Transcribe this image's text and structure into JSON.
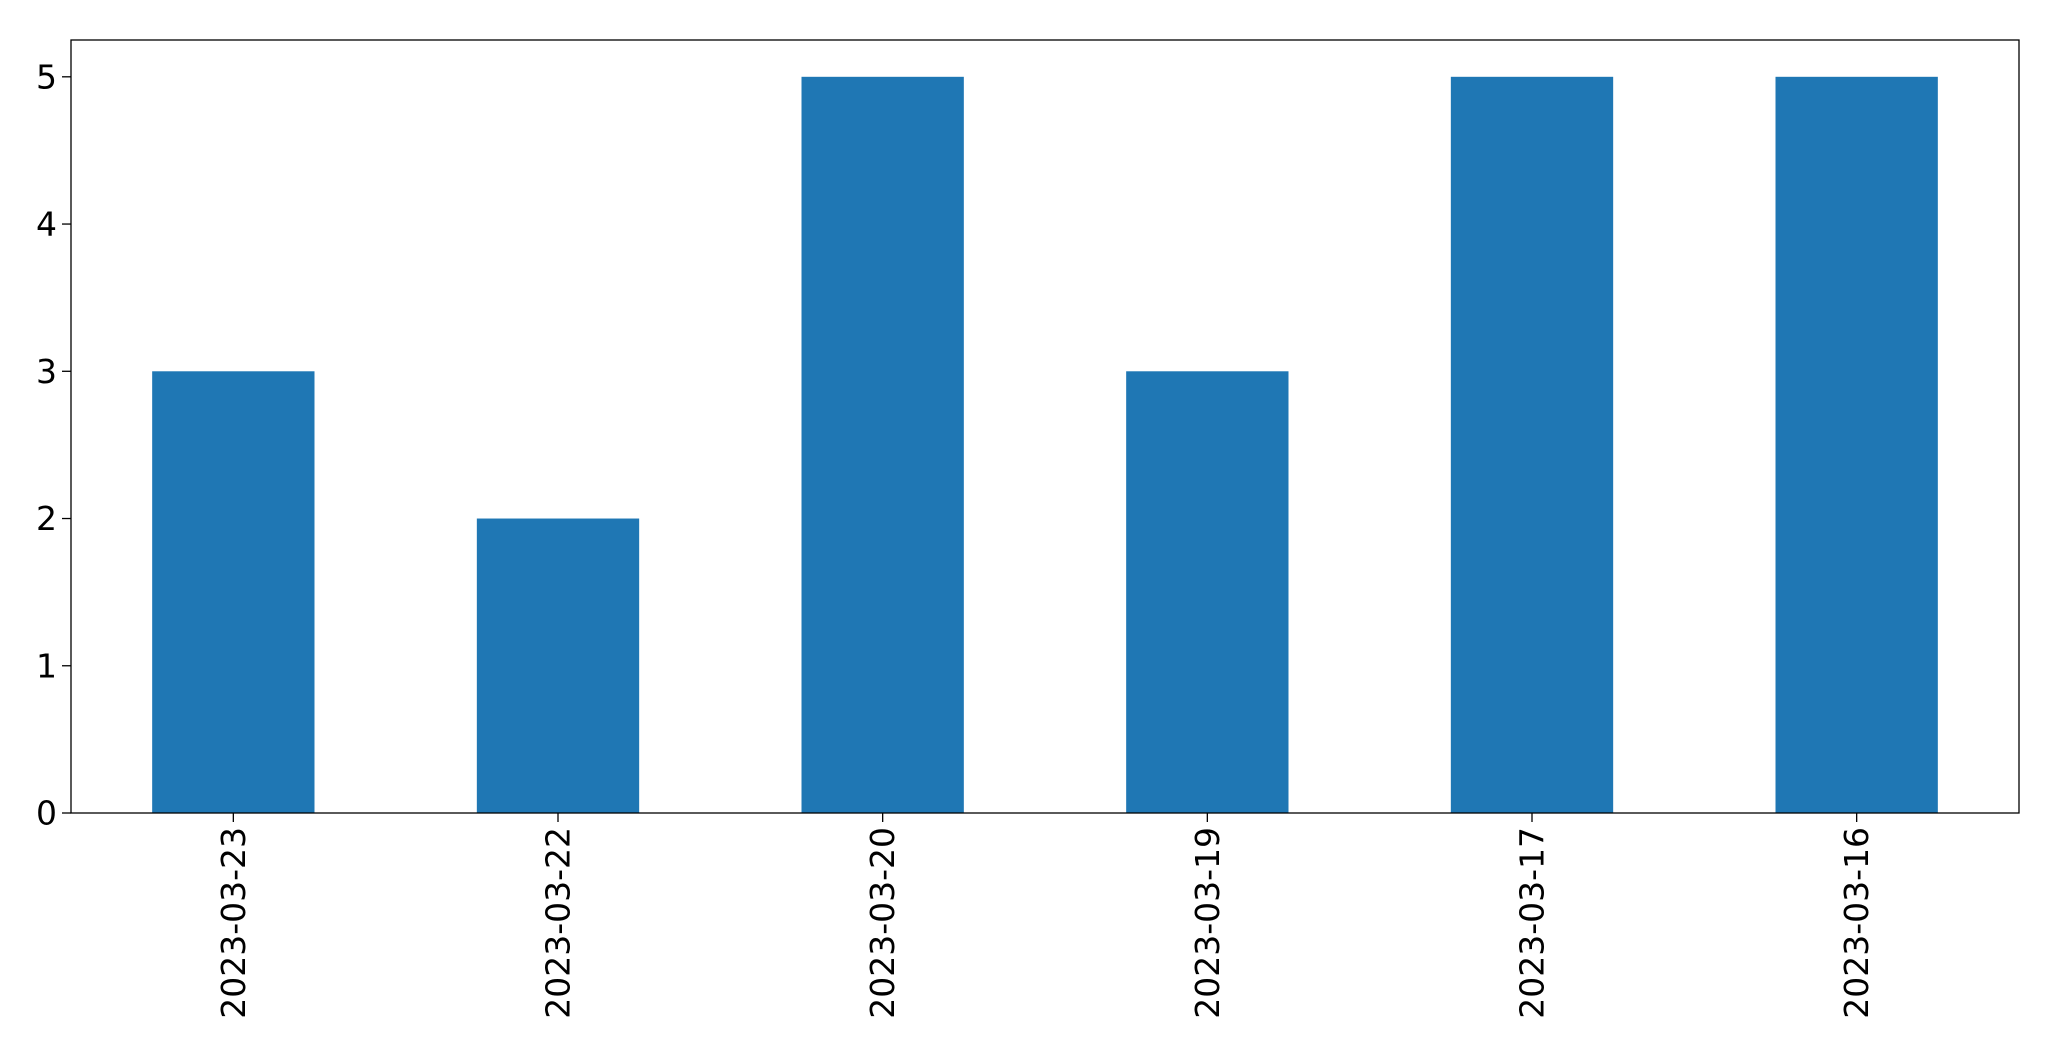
{
  "chart_data": {
    "type": "bar",
    "categories": [
      "2023-03-23",
      "2023-03-22",
      "2023-03-20",
      "2023-03-19",
      "2023-03-17",
      "2023-03-16"
    ],
    "values": [
      3,
      2,
      5,
      3,
      5,
      5
    ],
    "yticks": [
      "0",
      "1",
      "2",
      "3",
      "4",
      "5"
    ],
    "ylim": [
      0,
      5.25
    ],
    "grid": false,
    "legend": "none",
    "bar_color": "#1f77b4",
    "axis_color": "#000000"
  }
}
